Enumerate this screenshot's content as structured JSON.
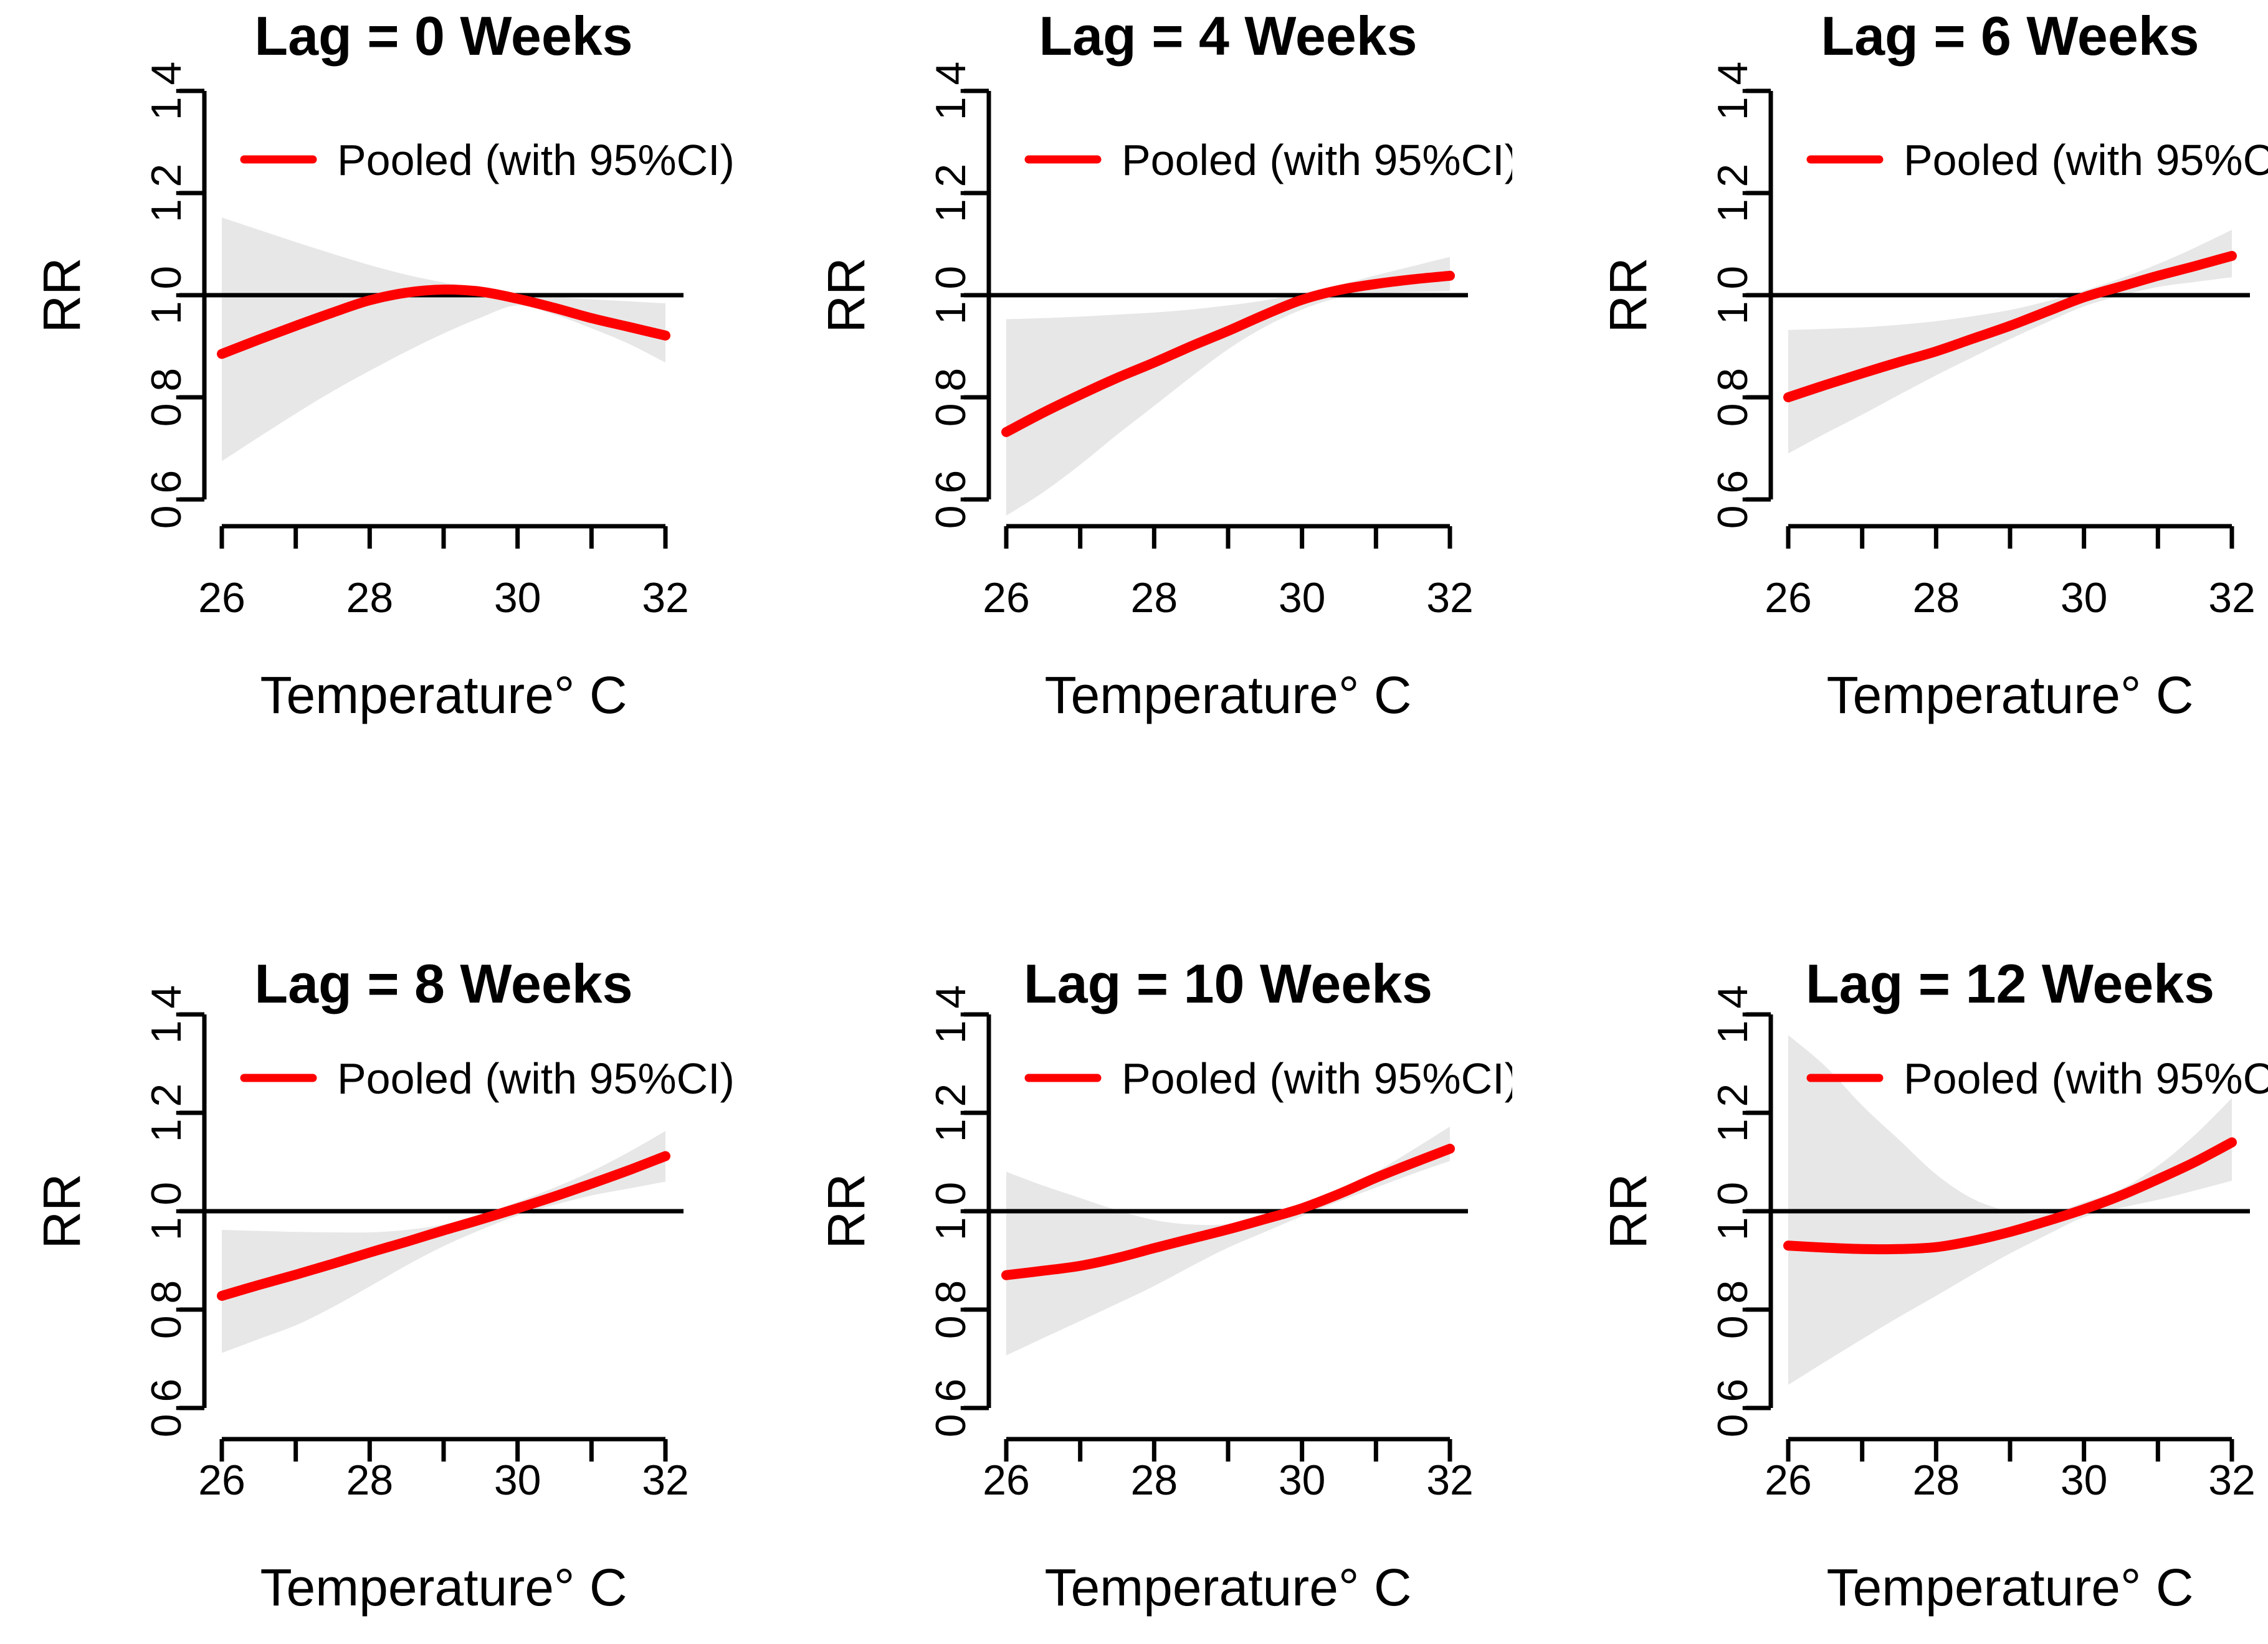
{
  "figure": {
    "description": "Pooled relative risk of outcome vs temperature at six lags",
    "ylabel": "RR",
    "xlabel": "Temperature° C",
    "legend_entry": "Pooled (with 95%CI)",
    "colors": {
      "curve": "#ff0000",
      "ci_band": "#e7e7e7",
      "reference_line": "#000000",
      "axis": "#000000",
      "text": "#000000",
      "background": "#ffffff"
    }
  },
  "chart_data": {
    "type": "line",
    "layout": "2 rows x 3 columns of panels",
    "xlabel": "Temperature° C",
    "ylabel": "RR",
    "legend": {
      "entries": [
        "Pooled (with 95%CI)"
      ],
      "position": "top-inside",
      "color": "#ff0000"
    },
    "grid": false,
    "reference_line_y": 1.0,
    "x": [
      26,
      26.5,
      27,
      27.5,
      28,
      28.5,
      29,
      29.5,
      30,
      30.5,
      31,
      31.5,
      32
    ],
    "xticks": [
      26,
      27,
      28,
      29,
      30,
      31,
      32
    ],
    "labeled_xticks": [
      26,
      28,
      30,
      32
    ],
    "xtick_labels": [
      "26",
      "28",
      "30",
      "32"
    ],
    "yticks": [
      0.6,
      0.8,
      1.0,
      1.2,
      1.4
    ],
    "ytick_labels": [
      "0.6",
      "0.8",
      "1.0",
      "1.2",
      "1.4"
    ],
    "xlim": [
      25.76,
      32.24
    ],
    "ylim": [
      0.568,
      1.432
    ],
    "panels": [
      {
        "title": "Lag = 0 Weeks",
        "pooled_rr": [
          0.885,
          0.913,
          0.94,
          0.966,
          0.99,
          1.005,
          1.011,
          1.007,
          0.993,
          0.975,
          0.955,
          0.938,
          0.921
        ],
        "ci_upper": [
          1.152,
          1.128,
          1.104,
          1.081,
          1.059,
          1.04,
          1.025,
          1.013,
          1.003,
          0.997,
          0.992,
          0.988,
          0.984
        ],
        "ci_lower": [
          0.675,
          0.722,
          0.768,
          0.812,
          0.852,
          0.89,
          0.925,
          0.956,
          0.98,
          0.962,
          0.935,
          0.905,
          0.868
        ]
      },
      {
        "title": "Lag = 4 Weeks",
        "pooled_rr": [
          0.732,
          0.77,
          0.805,
          0.838,
          0.868,
          0.9,
          0.93,
          0.962,
          0.991,
          1.01,
          1.022,
          1.031,
          1.038
        ],
        "ci_upper": [
          0.953,
          0.955,
          0.958,
          0.962,
          0.966,
          0.972,
          0.98,
          0.99,
          1.004,
          1.02,
          1.039,
          1.057,
          1.075
        ],
        "ci_lower": [
          0.56,
          0.614,
          0.668,
          0.727,
          0.783,
          0.84,
          0.894,
          0.938,
          0.972,
          0.995,
          1.003,
          1.006,
          1.008
        ]
      },
      {
        "title": "Lag = 6 Weeks",
        "pooled_rr": [
          0.8,
          0.824,
          0.847,
          0.869,
          0.89,
          0.915,
          0.94,
          0.968,
          0.996,
          1.017,
          1.038,
          1.057,
          1.077
        ],
        "ci_upper": [
          0.932,
          0.934,
          0.937,
          0.942,
          0.949,
          0.959,
          0.971,
          0.988,
          1.009,
          1.033,
          1.061,
          1.093,
          1.128
        ],
        "ci_lower": [
          0.69,
          0.729,
          0.766,
          0.805,
          0.843,
          0.879,
          0.914,
          0.947,
          0.978,
          0.999,
          1.016,
          1.026,
          1.035
        ]
      },
      {
        "title": "Lag = 8 Weeks",
        "pooled_rr": [
          0.828,
          0.85,
          0.871,
          0.893,
          0.916,
          0.938,
          0.961,
          0.983,
          1.006,
          1.03,
          1.056,
          1.083,
          1.112
        ],
        "ci_upper": [
          0.962,
          0.96,
          0.958,
          0.957,
          0.957,
          0.962,
          0.973,
          0.992,
          1.019,
          1.048,
          1.081,
          1.12,
          1.163
        ],
        "ci_lower": [
          0.712,
          0.74,
          0.768,
          0.805,
          0.847,
          0.89,
          0.929,
          0.962,
          0.991,
          1.013,
          1.032,
          1.046,
          1.06
        ]
      },
      {
        "title": "Lag = 10 Weeks",
        "pooled_rr": [
          0.87,
          0.879,
          0.889,
          0.905,
          0.925,
          0.944,
          0.963,
          0.984,
          1.006,
          1.035,
          1.068,
          1.098,
          1.127
        ],
        "ci_upper": [
          1.08,
          1.052,
          1.027,
          1.002,
          0.982,
          0.973,
          0.974,
          0.99,
          1.015,
          1.045,
          1.08,
          1.125,
          1.172
        ],
        "ci_lower": [
          0.707,
          0.742,
          0.777,
          0.812,
          0.848,
          0.888,
          0.926,
          0.958,
          0.99,
          1.02,
          1.048,
          1.076,
          1.102
        ]
      },
      {
        "title": "Lag = 12 Weeks",
        "pooled_rr": [
          0.93,
          0.926,
          0.923,
          0.923,
          0.927,
          0.94,
          0.958,
          0.98,
          1.004,
          1.032,
          1.065,
          1.1,
          1.14
        ],
        "ci_upper": [
          1.358,
          1.295,
          1.215,
          1.145,
          1.075,
          1.025,
          1.0,
          0.995,
          1.018,
          1.045,
          1.092,
          1.155,
          1.23
        ],
        "ci_lower": [
          0.647,
          0.694,
          0.74,
          0.785,
          0.828,
          0.872,
          0.914,
          0.952,
          0.988,
          1.007,
          1.023,
          1.042,
          1.062
        ]
      }
    ]
  }
}
